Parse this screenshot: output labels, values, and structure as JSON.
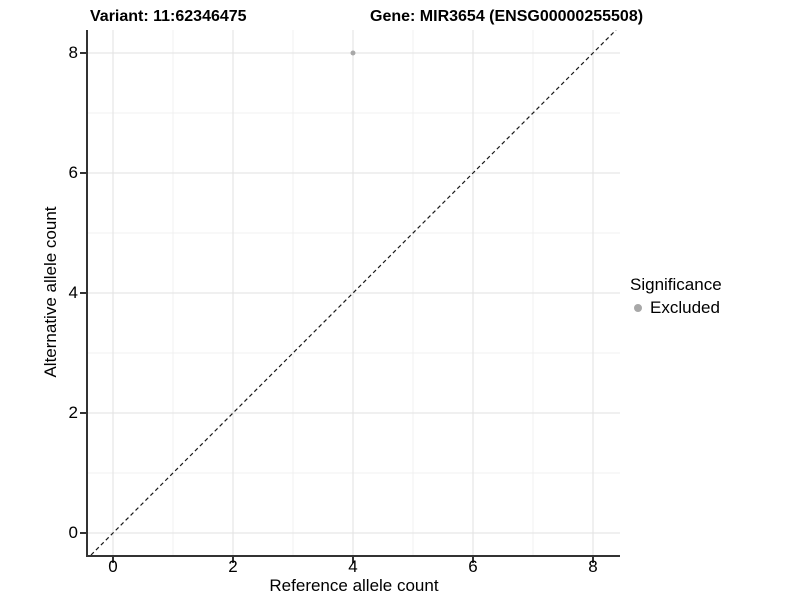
{
  "titles": {
    "variant": "Variant: 11:62346475",
    "gene": "Gene: MIR3654 (ENSG00000255508)"
  },
  "legend": {
    "title": "Significance",
    "items": [
      {
        "label": "Excluded",
        "color": "#a8a8a8"
      }
    ]
  },
  "chart_data": {
    "type": "scatter",
    "title_left": "Variant: 11:62346475",
    "title_right": "Gene: MIR3654 (ENSG00000255508)",
    "xlabel": "Reference allele count",
    "ylabel": "Alternative allele count",
    "xlim": [
      -0.4167,
      8.45
    ],
    "ylim": [
      -0.3667,
      8.3833
    ],
    "x_ticks": [
      0,
      2,
      4,
      6,
      8
    ],
    "x_tick_labels": [
      "0",
      "2",
      "4",
      "6",
      "8"
    ],
    "x_minor": [
      1,
      3,
      5,
      7
    ],
    "y_ticks": [
      0,
      2,
      4,
      6,
      8
    ],
    "y_tick_labels": [
      "0",
      "2",
      "4",
      "6",
      "8"
    ],
    "y_minor": [
      1,
      3,
      5,
      7
    ],
    "grid": "major and minor gridlines on white background",
    "legend_position": "right",
    "series": [
      {
        "name": "Excluded",
        "color": "#a8a8a8",
        "points": [
          {
            "x": 4,
            "y": 8
          }
        ]
      }
    ],
    "reference_line": {
      "type": "identity y=x",
      "style": "dashed",
      "color": "#1a1a1a"
    }
  },
  "colors": {
    "background": "#ffffff",
    "grid_major": "#e2e2e2",
    "grid_minor": "#f1f1f1",
    "axis_line": "#333333",
    "tick_mark": "#333333",
    "text": "#000000",
    "point": "#a8a8a8"
  }
}
